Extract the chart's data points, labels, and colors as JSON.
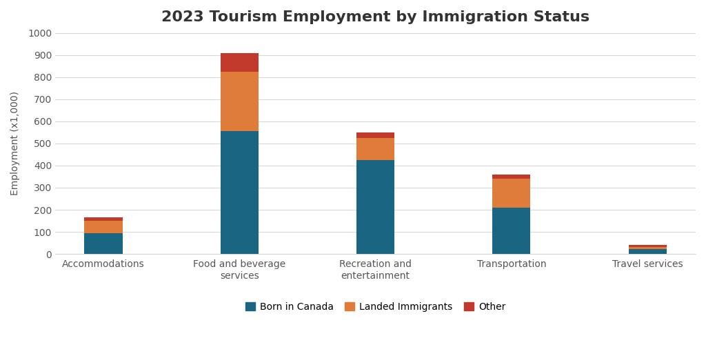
{
  "title": "2023 Tourism Employment by Immigration Status",
  "categories": [
    "Accommodations",
    "Food and beverage\nservices",
    "Recreation and\nentertainment",
    "Transportation",
    "Travel services"
  ],
  "born_in_canada": [
    95,
    555,
    425,
    210,
    22
  ],
  "landed_immigrants": [
    55,
    270,
    100,
    130,
    10
  ],
  "other": [
    15,
    85,
    25,
    20,
    8
  ],
  "colors": {
    "born_in_canada": "#1a6682",
    "landed_immigrants": "#e07c3a",
    "other": "#c0392b"
  },
  "ylabel": "Employment (x1,000)",
  "ylim": [
    0,
    1000
  ],
  "yticks": [
    0,
    100,
    200,
    300,
    400,
    500,
    600,
    700,
    800,
    900,
    1000
  ],
  "legend_labels": [
    "Born in Canada",
    "Landed Immigrants",
    "Other"
  ],
  "background_color": "#ffffff",
  "title_fontsize": 16,
  "axis_fontsize": 10,
  "tick_fontsize": 10,
  "bar_width": 0.28
}
